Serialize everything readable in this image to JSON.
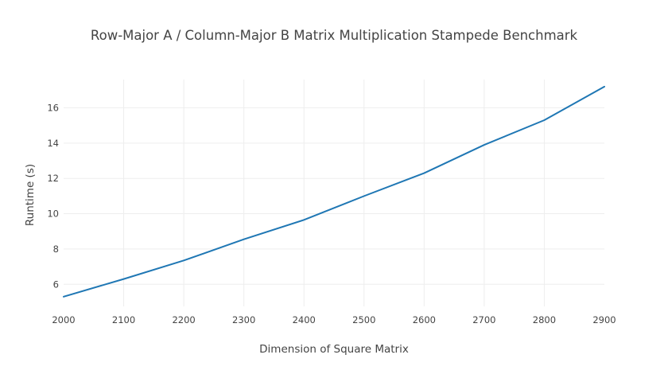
{
  "chart_data": {
    "type": "line",
    "title": "Row-Major A / Column-Major B Matrix Multiplication Stampede Benchmark",
    "xlabel": "Dimension of Square Matrix",
    "ylabel": "Runtime (s)",
    "x": [
      2000,
      2100,
      2200,
      2300,
      2400,
      2500,
      2600,
      2700,
      2800,
      2900
    ],
    "xlim": [
      2000,
      2900
    ],
    "ylim": [
      4.75,
      17.6
    ],
    "xticks": [
      "2000",
      "2100",
      "2200",
      "2300",
      "2400",
      "2500",
      "2600",
      "2700",
      "2800",
      "2900"
    ],
    "yticks": [
      "6",
      "8",
      "10",
      "12",
      "14",
      "16"
    ],
    "grid": true,
    "series": [
      {
        "values": [
          5.3,
          6.3,
          7.35,
          8.55,
          9.65,
          11.0,
          12.3,
          13.9,
          15.3,
          17.2
        ],
        "color": "#1f77b4"
      }
    ]
  }
}
